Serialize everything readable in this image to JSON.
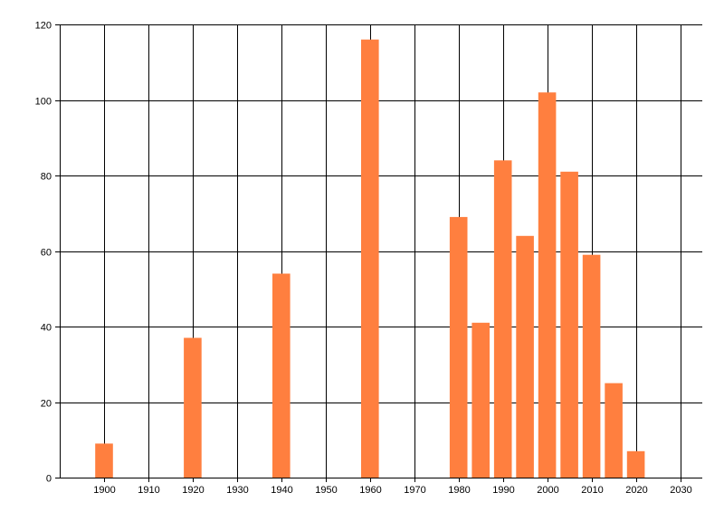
{
  "chart_data": {
    "type": "bar",
    "title": "",
    "xlabel": "",
    "ylabel": "",
    "x": [
      1900,
      1920,
      1940,
      1960,
      1980,
      1985,
      1990,
      1995,
      2000,
      2005,
      2010,
      2015,
      2020
    ],
    "values": [
      9,
      37,
      54,
      116,
      69,
      41,
      84,
      64,
      102,
      81,
      59,
      25,
      7
    ],
    "xlim": [
      1890,
      2035
    ],
    "ylim": [
      0,
      120
    ],
    "xticks": [
      1900,
      1910,
      1920,
      1930,
      1940,
      1950,
      1960,
      1970,
      1980,
      1990,
      2000,
      2010,
      2020,
      2030
    ],
    "yticks": [
      0,
      20,
      40,
      60,
      80,
      100,
      120
    ],
    "grid": true,
    "bar_color": "#ff7f3f"
  }
}
